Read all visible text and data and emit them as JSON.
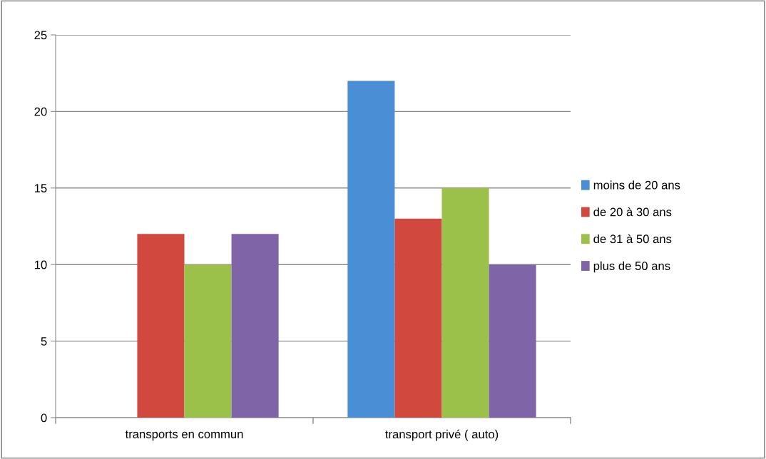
{
  "chart_data": {
    "type": "bar",
    "categories": [
      "transports en commun",
      "transport privé ( auto)"
    ],
    "series": [
      {
        "name": "moins de 20 ans",
        "color": "#4a8fd6",
        "values": [
          0,
          22
        ]
      },
      {
        "name": "de 20 à 30 ans",
        "color": "#d0483e",
        "values": [
          12,
          13
        ]
      },
      {
        "name": "de 31 à 50 ans",
        "color": "#9bc14a",
        "values": [
          10,
          15
        ]
      },
      {
        "name": "plus de 50 ans",
        "color": "#8064a8",
        "values": [
          12,
          10
        ]
      }
    ],
    "ylim": [
      0,
      25
    ],
    "yticks": [
      0,
      5,
      10,
      15,
      20,
      25
    ],
    "grid": "y",
    "legend": "right"
  }
}
